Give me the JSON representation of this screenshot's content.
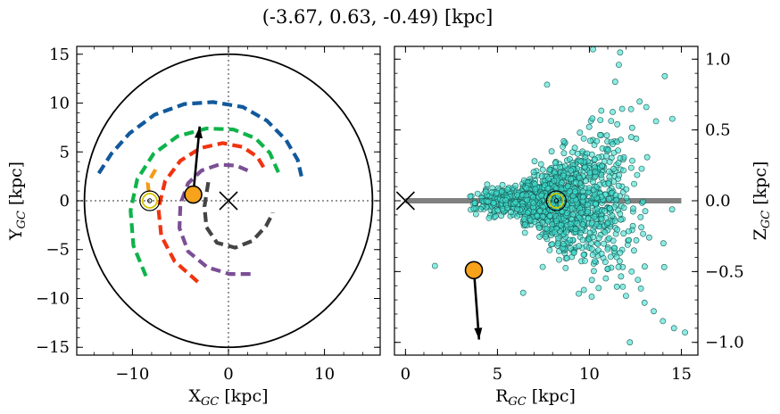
{
  "figure": {
    "title": "(-3.67, 0.63, -0.49) [kpc]"
  },
  "chart_data": [
    {
      "type": "scatter",
      "panel": "left",
      "xlabel": "X_GC [kpc]",
      "ylabel": "Y_GC [kpc]",
      "xlabel_text": "X",
      "xlabel_sub": "GC",
      "xlabel_unit": " [kpc]",
      "ylabel_text": "Y",
      "ylabel_sub": "GC",
      "ylabel_unit": " [kpc]",
      "xlim": [
        -15.8,
        15.8
      ],
      "ylim": [
        -15.8,
        15.8
      ],
      "xticks": [
        -10,
        0,
        10
      ],
      "xtick_labels": [
        "−10",
        "0",
        "10"
      ],
      "yticks": [
        -15,
        -10,
        -5,
        0,
        5,
        10,
        15
      ],
      "ytick_labels": [
        "−15",
        "−10",
        "−5",
        "0",
        "5",
        "10",
        "15"
      ],
      "boundary_circle_radius": 15,
      "galactic_center": [
        0,
        0
      ],
      "sun": [
        -8.2,
        0
      ],
      "object": [
        -3.67,
        0.63
      ],
      "velocity_arrow": {
        "from": [
          -3.67,
          0.63
        ],
        "to": [
          -3.0,
          7.6
        ]
      },
      "spiral_arms": [
        {
          "color": "#11599b",
          "points": [
            [
              -13.5,
              2.8
            ],
            [
              -12.2,
              4.8
            ],
            [
              -10.3,
              6.9
            ],
            [
              -7.7,
              8.8
            ],
            [
              -4.6,
              9.9
            ],
            [
              -1.6,
              10.1
            ],
            [
              1.5,
              9.6
            ],
            [
              4.0,
              8.2
            ],
            [
              6.0,
              6.2
            ],
            [
              7.2,
              4.2
            ],
            [
              7.6,
              2.5
            ]
          ]
        },
        {
          "color": "#0fb34b",
          "points": [
            [
              -8.6,
              -7.7
            ],
            [
              -9.9,
              -4.6
            ],
            [
              -10.2,
              -1.0
            ],
            [
              -9.5,
              2.2
            ],
            [
              -7.8,
              4.8
            ],
            [
              -5.3,
              6.6
            ],
            [
              -2.3,
              7.4
            ],
            [
              0.5,
              7.3
            ],
            [
              2.8,
              6.4
            ],
            [
              4.3,
              4.9
            ],
            [
              5.2,
              2.9
            ]
          ]
        },
        {
          "color": "#f03410",
          "points": [
            [
              -3.2,
              -8.3
            ],
            [
              -5.6,
              -6.2
            ],
            [
              -7.0,
              -3.6
            ],
            [
              -7.3,
              -0.8
            ],
            [
              -6.6,
              2.0
            ],
            [
              -5.0,
              4.1
            ],
            [
              -2.9,
              5.4
            ],
            [
              -0.6,
              5.9
            ],
            [
              1.5,
              5.5
            ],
            [
              3.0,
              4.5
            ],
            [
              3.8,
              3.2
            ]
          ]
        },
        {
          "color": "#7b4f95",
          "points": [
            [
              2.3,
              -7.5
            ],
            [
              0.1,
              -7.5
            ],
            [
              -2.2,
              -6.8
            ],
            [
              -4.2,
              -5.2
            ],
            [
              -5.1,
              -2.8
            ],
            [
              -5.0,
              -0.3
            ],
            [
              -4.2,
              1.8
            ],
            [
              -2.8,
              3.1
            ],
            [
              -1.0,
              3.7
            ],
            [
              0.8,
              3.6
            ],
            [
              2.0,
              3.1
            ]
          ]
        },
        {
          "color": "#444444",
          "points": [
            [
              -2.1,
              1.9
            ],
            [
              -2.5,
              -0.6
            ],
            [
              -2.3,
              -2.7
            ],
            [
              -1.2,
              -4.3
            ],
            [
              0.7,
              -4.8
            ],
            [
              2.5,
              -4.1
            ],
            [
              3.9,
              -2.6
            ],
            [
              4.6,
              -1.3
            ],
            [
              4.6,
              -1.2
            ]
          ]
        },
        {
          "color": "#f59b17",
          "points": [
            [
              -7.6,
              3.2
            ],
            [
              -8.4,
              1.8
            ],
            [
              -8.3,
              0.9
            ]
          ]
        }
      ]
    },
    {
      "type": "scatter",
      "panel": "right",
      "xlabel": "R_GC [kpc]",
      "ylabel": "Z_GC [kpc]",
      "xlabel_text": "R",
      "xlabel_sub": "GC",
      "xlabel_unit": " [kpc]",
      "ylabel_text": "Z",
      "ylabel_sub": "GC",
      "ylabel_unit": " [kpc]",
      "xlim": [
        -0.6,
        15.9
      ],
      "ylim": [
        -1.09,
        1.09
      ],
      "xticks": [
        0,
        5,
        10,
        15
      ],
      "xtick_labels": [
        "0",
        "5",
        "10",
        "15"
      ],
      "yticks": [
        -1.0,
        -0.5,
        0.0,
        0.5,
        1.0
      ],
      "ytick_labels": [
        "−1.0",
        "−0.5",
        "0.0",
        "0.5",
        "1.0"
      ],
      "disk_line": {
        "x": [
          0,
          15
        ],
        "y": 0
      },
      "galactic_center": [
        0,
        0
      ],
      "sun": [
        8.2,
        0
      ],
      "object": [
        3.72,
        -0.49
      ],
      "velocity_arrow": {
        "from": [
          3.72,
          -0.49
        ],
        "to": [
          4.0,
          -0.98
        ]
      },
      "point_color": "#40e0d0",
      "n_points": 1400,
      "outliers": [
        [
          1.6,
          -0.46
        ],
        [
          10.2,
          1.07
        ],
        [
          11.6,
          0.96
        ],
        [
          7.7,
          0.82
        ],
        [
          11.4,
          0.84
        ],
        [
          14.1,
          0.88
        ],
        [
          6.4,
          -0.65
        ],
        [
          9.7,
          -0.63
        ],
        [
          12.3,
          -0.5
        ],
        [
          13.0,
          -0.72
        ],
        [
          12.2,
          -1.0
        ],
        [
          14.0,
          -0.85
        ],
        [
          14.6,
          -0.9
        ],
        [
          15.2,
          -0.93
        ],
        [
          13.5,
          -0.78
        ],
        [
          12.8,
          -0.62
        ],
        [
          11.0,
          -0.48
        ]
      ]
    }
  ]
}
